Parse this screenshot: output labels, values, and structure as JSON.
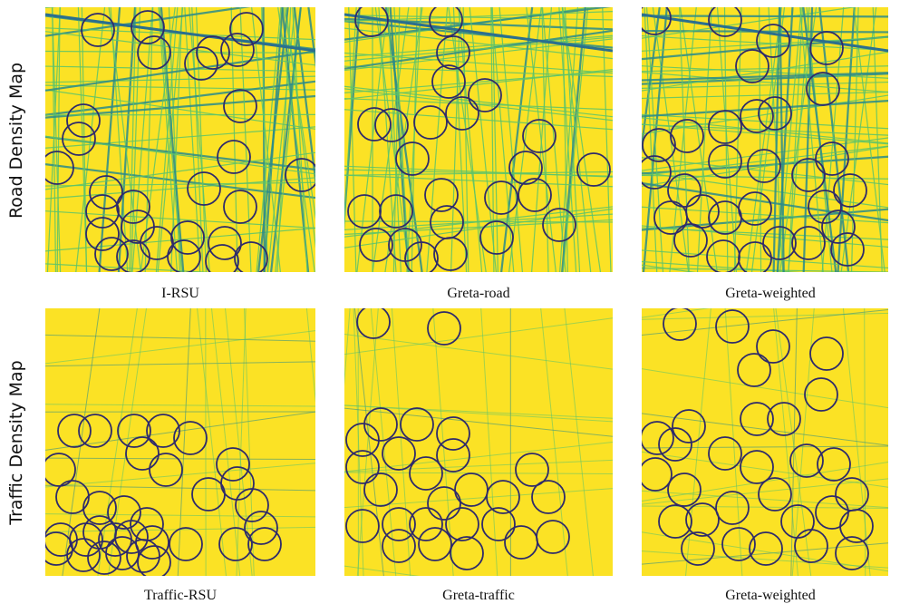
{
  "rows": [
    {
      "label": "Road Density Map",
      "panels": [
        "I-RSU",
        "Greta-road",
        "Greta-weighted"
      ]
    },
    {
      "label": "Traffic Density Map",
      "panels": [
        "Traffic-RSU",
        "Greta-traffic",
        "Greta-weighted"
      ]
    }
  ]
}
